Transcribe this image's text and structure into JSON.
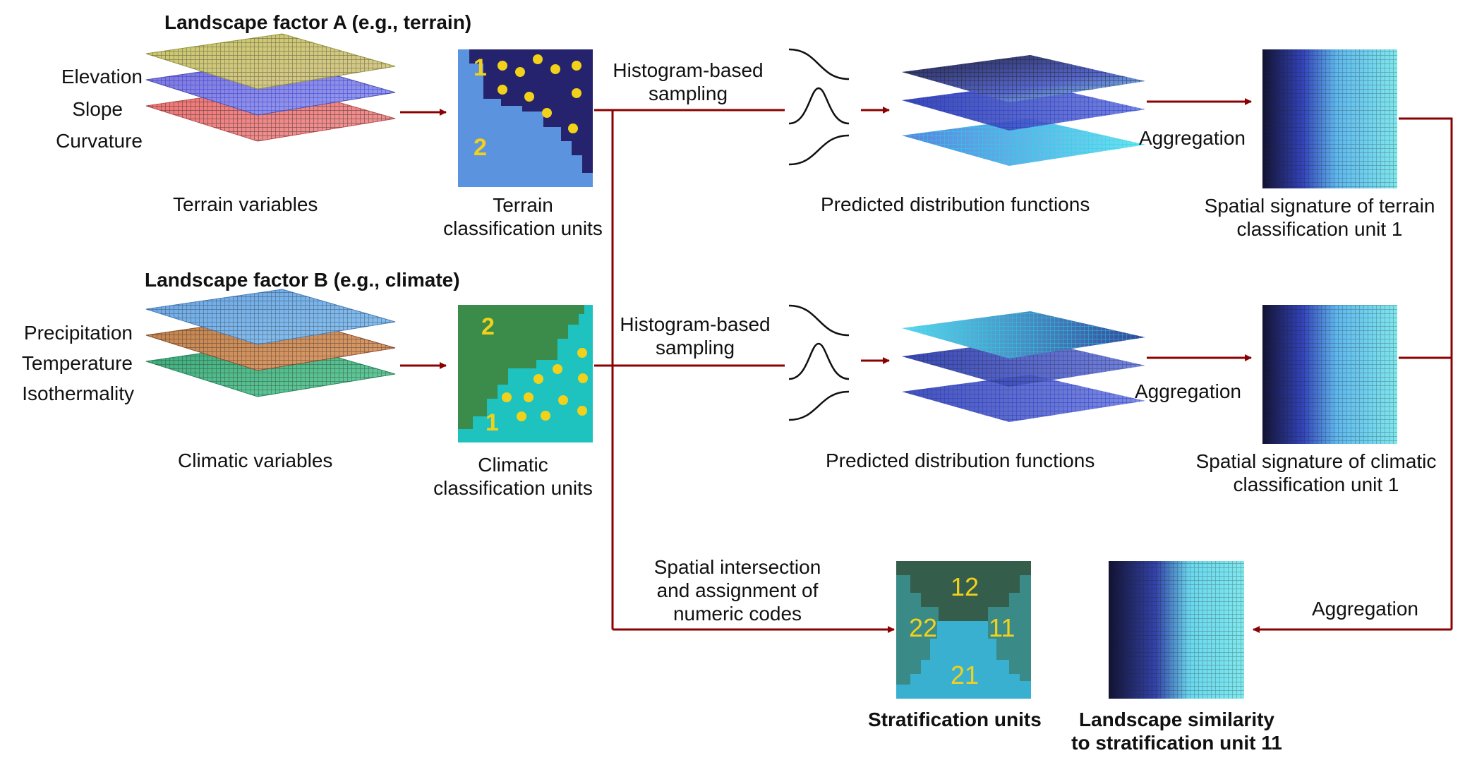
{
  "factor_a": {
    "heading": "Landscape factor A (e.g., terrain)",
    "layers": [
      "Elevation",
      "Slope",
      "Curvature"
    ],
    "variables_caption": "Terrain variables",
    "units_caption": [
      "Terrain",
      "classification units"
    ],
    "unit_numbers": [
      "1",
      "2"
    ],
    "sampling_label": [
      "Histogram-based",
      "sampling"
    ],
    "distributions_caption": "Predicted distribution functions",
    "aggregation_label": "Aggregation",
    "signature_caption": [
      "Spatial signature of terrain",
      "classification unit 1"
    ]
  },
  "factor_b": {
    "heading": "Landscape factor B (e.g., climate)",
    "layers": [
      "Precipitation",
      "Temperature",
      "Isothermality"
    ],
    "variables_caption": "Climatic variables",
    "units_caption": [
      "Climatic",
      "classification units"
    ],
    "unit_numbers": [
      "2",
      "1"
    ],
    "sampling_label": [
      "Histogram-based",
      "sampling"
    ],
    "distributions_caption": "Predicted distribution functions",
    "aggregation_label": "Aggregation",
    "signature_caption": [
      "Spatial signature of climatic",
      "classification unit 1"
    ]
  },
  "intersection": {
    "label": [
      "Spatial intersection",
      "and assignment of",
      "numeric codes"
    ],
    "codes": [
      "12",
      "22",
      "11",
      "21"
    ],
    "caption": "Stratification units"
  },
  "similarity": {
    "aggregation_label": "Aggregation",
    "caption": [
      "Landscape similarity",
      "to stratification unit 11"
    ]
  },
  "colors": {
    "arrow": "#8b0000",
    "terrain_dark": "#25236d",
    "terrain_light": "#5b93df",
    "climate_dark": "#3b8b4a",
    "climate_light": "#1ec3c0",
    "dot": "#f2d11a",
    "strat_dark": "#355d4c",
    "strat_mid": "#3a8a88",
    "strat_light": "#3ab0d0"
  }
}
